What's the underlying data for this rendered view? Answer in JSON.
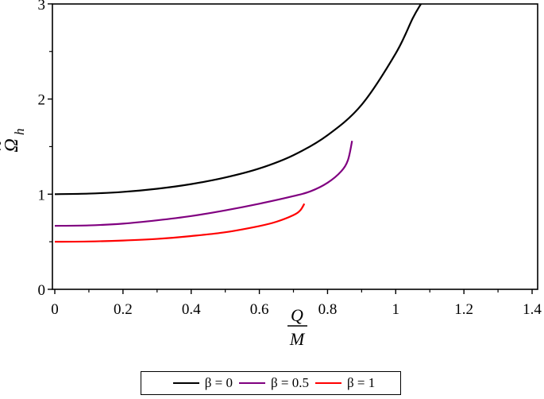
{
  "chart_data": {
    "type": "line",
    "title": "",
    "xlabel": "Q/M",
    "xlabel_numerator": "Q",
    "xlabel_denominator": "M",
    "ylabel": "Ω̃_h",
    "ylabel_main": "Ω",
    "ylabel_sub": "h",
    "ylabel_tilde": "~",
    "xlim": [
      0,
      1.42
    ],
    "ylim": [
      0,
      3.01
    ],
    "grid": false,
    "legend_position": "bottom",
    "x_ticks": [
      {
        "value": 0,
        "label": "0"
      },
      {
        "value": 0.2,
        "label": "0.2"
      },
      {
        "value": 0.4,
        "label": "0.4"
      },
      {
        "value": 0.6,
        "label": "0.6"
      },
      {
        "value": 0.8,
        "label": "0.8"
      },
      {
        "value": 1.0,
        "label": "1"
      },
      {
        "value": 1.2,
        "label": "1.2"
      },
      {
        "value": 1.4,
        "label": "1.4"
      }
    ],
    "x_minor_ticks": [
      0.1,
      0.3,
      0.5,
      0.7,
      0.9,
      1.1,
      1.3
    ],
    "y_ticks": [
      {
        "value": 0,
        "label": "0"
      },
      {
        "value": 1,
        "label": "1"
      },
      {
        "value": 2,
        "label": "2"
      },
      {
        "value": 3,
        "label": "3"
      }
    ],
    "y_minor_ticks": [
      0.5,
      1.5,
      2.5
    ],
    "series": [
      {
        "name": "β = 0",
        "color": "#000000",
        "x": [
          0,
          0.1,
          0.2,
          0.3,
          0.4,
          0.5,
          0.6,
          0.7,
          0.8,
          0.9,
          1.0,
          1.05,
          1.074
        ],
        "y": [
          1.0,
          1.006,
          1.024,
          1.057,
          1.106,
          1.175,
          1.27,
          1.41,
          1.62,
          1.94,
          2.48,
          2.85,
          3.0
        ]
      },
      {
        "name": "β = 0.5",
        "color": "#800080",
        "x": [
          0,
          0.1,
          0.2,
          0.3,
          0.4,
          0.5,
          0.6,
          0.7,
          0.75,
          0.8,
          0.84,
          0.86,
          0.872
        ],
        "y": [
          0.667,
          0.672,
          0.69,
          0.725,
          0.77,
          0.83,
          0.9,
          0.98,
          1.03,
          1.12,
          1.24,
          1.36,
          1.56
        ]
      },
      {
        "name": "β = 1",
        "color": "#ff0000",
        "x": [
          0,
          0.1,
          0.2,
          0.3,
          0.4,
          0.5,
          0.6,
          0.65,
          0.7,
          0.72,
          0.732
        ],
        "y": [
          0.5,
          0.503,
          0.513,
          0.53,
          0.56,
          0.6,
          0.665,
          0.71,
          0.78,
          0.83,
          0.9
        ]
      }
    ]
  },
  "legend": {
    "items": [
      {
        "label": "β = 0",
        "color": "#000000"
      },
      {
        "label": "β = 0.5",
        "color": "#800080"
      },
      {
        "label": "β = 1",
        "color": "#ff0000"
      }
    ]
  }
}
